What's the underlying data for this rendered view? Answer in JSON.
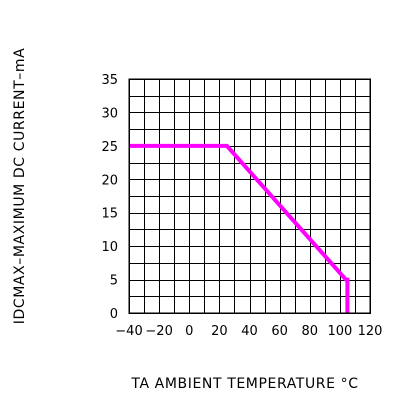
{
  "chart_data": {
    "type": "line",
    "title": "",
    "xlabel": "TA  AMBIENT  TEMPERATURE  °C",
    "ylabel": "IDCMAX–MAXIMUM  DC  CURRENT–mA",
    "xlim": [
      -40,
      120
    ],
    "ylim": [
      0,
      35
    ],
    "x_ticks": [
      -40,
      -20,
      0,
      20,
      40,
      60,
      80,
      100,
      120
    ],
    "y_ticks": [
      0,
      5,
      10,
      15,
      20,
      25,
      30,
      35
    ],
    "x_tick_labels": [
      "−40",
      "−20",
      "0",
      "20",
      "40",
      "60",
      "80",
      "100",
      "120"
    ],
    "y_tick_labels": [
      "0",
      "5",
      "10",
      "15",
      "20",
      "25",
      "30",
      "35"
    ],
    "grid": true,
    "grid_minor_x": 10,
    "grid_minor_y": 2.5,
    "series": [
      {
        "color": "#ff00ff",
        "x": [
          -40,
          25,
          104,
          105,
          105
        ],
        "y": [
          25,
          25,
          5,
          5,
          0
        ]
      }
    ]
  }
}
